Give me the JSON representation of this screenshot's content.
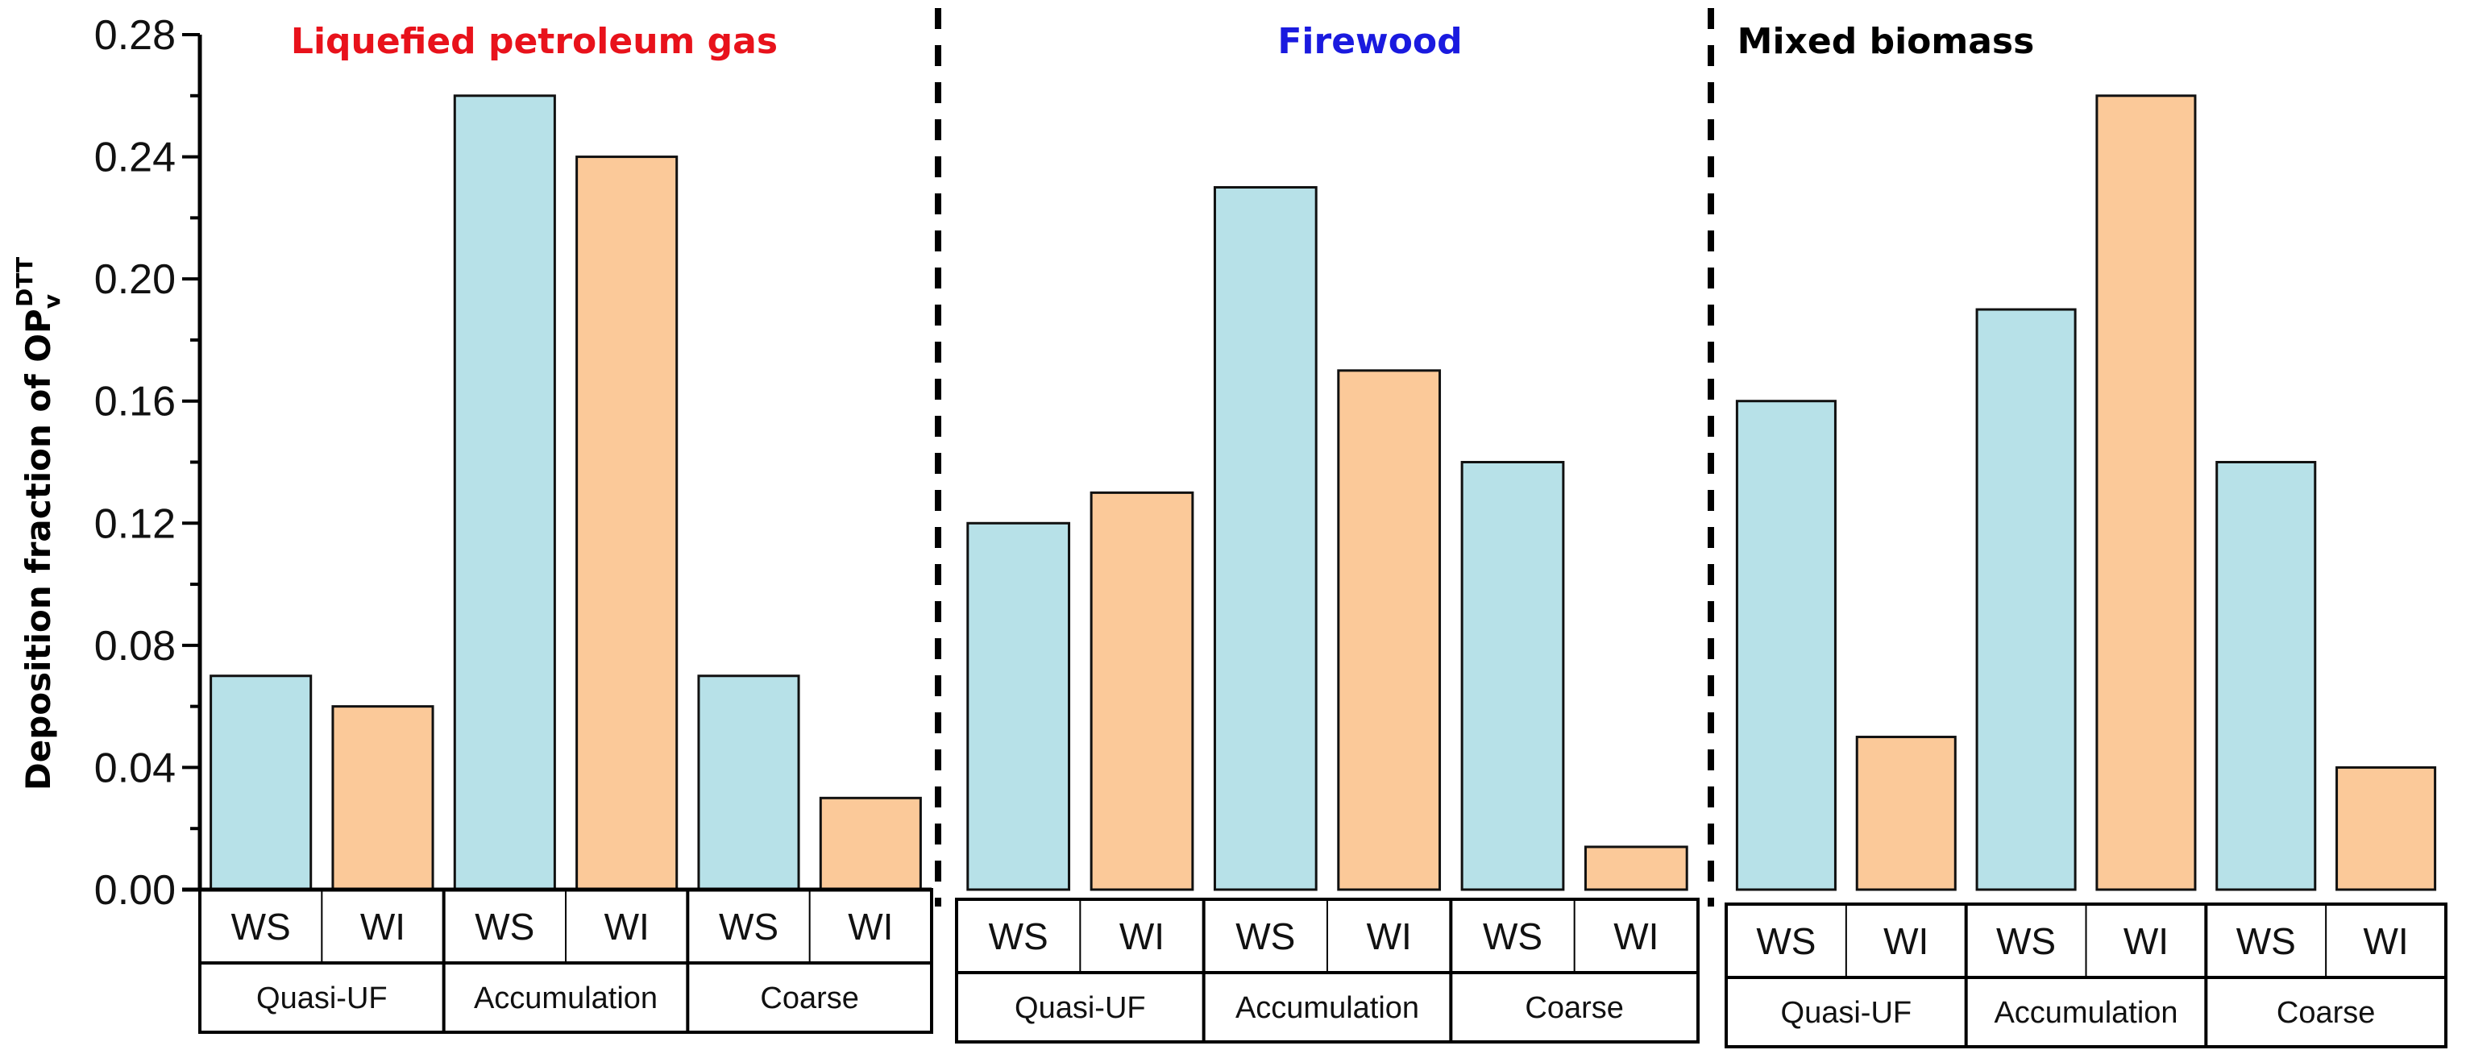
{
  "chart_data": {
    "type": "bar",
    "ylabel": "Deposition fraction of OP",
    "ylabel_sub": "v",
    "ylabel_sup": "DTT",
    "ylim": [
      0,
      0.28
    ],
    "yticks": [
      "0.00",
      "0.04",
      "0.08",
      "0.12",
      "0.16",
      "0.20",
      "0.24",
      "0.28"
    ],
    "grid": false,
    "colors": {
      "WS": "#b7e1e8",
      "WI": "#fbc999",
      "lpg_title": "#e8121b",
      "firewood_title": "#1a1adf",
      "mixed_title": "#000000"
    },
    "groups": [
      "Quasi-UF",
      "Accumulation",
      "Coarse"
    ],
    "categories": [
      "WS",
      "WI",
      "WS",
      "WI",
      "WS",
      "WI"
    ],
    "panels": [
      {
        "title": "Liquefied petroleum gas",
        "title_color": "#e8121b",
        "values": [
          0.07,
          0.06,
          0.26,
          0.24,
          0.07,
          0.03
        ]
      },
      {
        "title": "Firewood",
        "title_color": "#1a1adf",
        "values": [
          0.12,
          0.13,
          0.23,
          0.17,
          0.14,
          0.014
        ]
      },
      {
        "title": "Mixed biomass",
        "title_color": "#000000",
        "values": [
          0.16,
          0.05,
          0.19,
          0.26,
          0.14,
          0.04
        ]
      }
    ]
  }
}
